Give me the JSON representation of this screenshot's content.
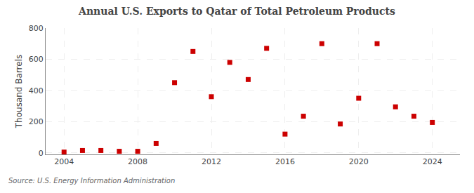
{
  "chart_data": {
    "type": "scatter",
    "title": "Annual U.S. Exports to Qatar of Total Petroleum Products",
    "ylabel": "Thousand Barrels",
    "annotations": [
      "Source: U.S. Energy Information Administration"
    ],
    "x": [
      2004,
      2005,
      2006,
      2007,
      2008,
      2009,
      2010,
      2011,
      2012,
      2013,
      2014,
      2015,
      2016,
      2017,
      2018,
      2019,
      2020,
      2021,
      2022,
      2023,
      2024
    ],
    "values": [
      5,
      15,
      15,
      10,
      10,
      60,
      450,
      650,
      360,
      580,
      470,
      670,
      120,
      235,
      700,
      185,
      350,
      700,
      295,
      235,
      195
    ],
    "color": "#cc0000",
    "marker": "square",
    "xlim": [
      2003.0,
      2025.5
    ],
    "ylim": [
      -10,
      800
    ],
    "xticks": [
      2004,
      2008,
      2012,
      2016,
      2020,
      2024
    ],
    "yticks": [
      0,
      200,
      400,
      600,
      800
    ],
    "grid": true
  }
}
